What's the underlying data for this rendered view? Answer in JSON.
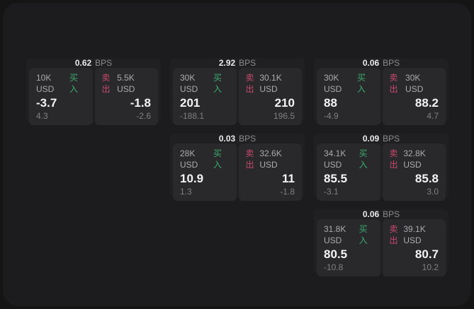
{
  "labels": {
    "bps_unit": "BPS",
    "buy": "买入",
    "sell": "卖出"
  },
  "colors": {
    "page_background": "#151515",
    "panel_background": "#1c1c1e",
    "card_background": "#202022",
    "tile_background": "#29292b",
    "buy_green": "#3cab6e",
    "sell_red": "#c84a6c"
  },
  "cards": [
    {
      "bps": "0.62",
      "buy": {
        "amount": "10K USD",
        "value": "-3.7",
        "sub": "4.3"
      },
      "sell": {
        "amount": "5.5K USD",
        "value": "-1.8",
        "sub": "-2.6"
      }
    },
    {
      "bps": "2.92",
      "buy": {
        "amount": "30K USD",
        "value": "201",
        "sub": "-188.1"
      },
      "sell": {
        "amount": "30.1K USD",
        "value": "210",
        "sub": "196.5"
      }
    },
    {
      "bps": "0.06",
      "buy": {
        "amount": "30K USD",
        "value": "88",
        "sub": "-4.9"
      },
      "sell": {
        "amount": "30K USD",
        "value": "88.2",
        "sub": "4.7"
      }
    },
    {
      "bps": "0.03",
      "buy": {
        "amount": "28K USD",
        "value": "10.9",
        "sub": "1.3"
      },
      "sell": {
        "amount": "32.6K USD",
        "value": "11",
        "sub": "-1.8"
      }
    },
    {
      "bps": "0.09",
      "buy": {
        "amount": "34.1K USD",
        "value": "85.5",
        "sub": "-3.1"
      },
      "sell": {
        "amount": "32.8K USD",
        "value": "85.8",
        "sub": "3.0"
      }
    },
    {
      "bps": "0.06",
      "buy": {
        "amount": "31.8K USD",
        "value": "80.5",
        "sub": "-10.8"
      },
      "sell": {
        "amount": "39.1K USD",
        "value": "80.7",
        "sub": "10.2"
      }
    }
  ]
}
